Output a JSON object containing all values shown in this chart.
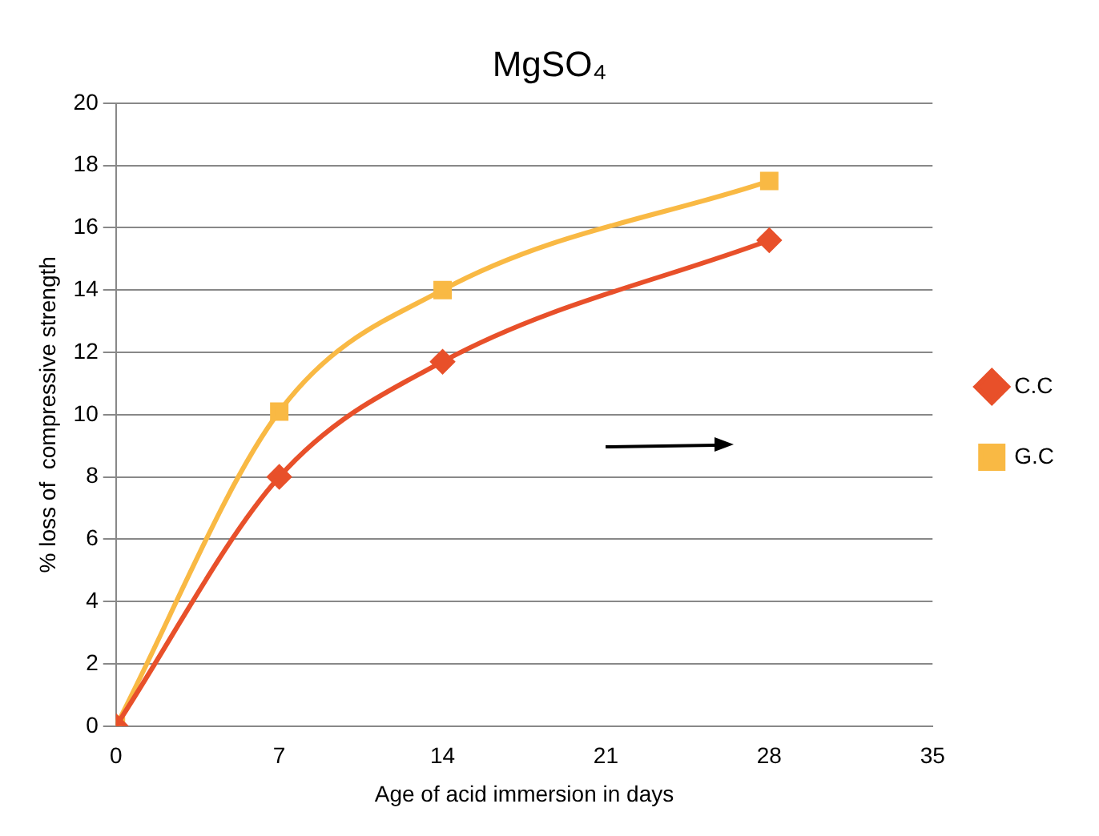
{
  "chart_data": {
    "type": "line",
    "title": "MgSO₄",
    "xlabel": "Age of acid immersion in days",
    "ylabel": "% loss of  compressive strength",
    "x": [
      0,
      7,
      14,
      28
    ],
    "series": [
      {
        "name": "C.C",
        "color": "#e8502a",
        "values": [
          0,
          8,
          11.7,
          15.6
        ],
        "marker": "diamond"
      },
      {
        "name": "G.C",
        "color": "#f9b944",
        "values": [
          0,
          10.1,
          14,
          17.5
        ],
        "marker": "square"
      }
    ],
    "xlim": [
      0,
      35
    ],
    "xticks": [
      0,
      7,
      14,
      21,
      28,
      35
    ],
    "ylim": [
      0,
      20
    ],
    "yticks": [
      0,
      2,
      4,
      6,
      8,
      10,
      12,
      14,
      16,
      18,
      20
    ],
    "grid": "y",
    "legend": "right",
    "line_style": "solid"
  }
}
